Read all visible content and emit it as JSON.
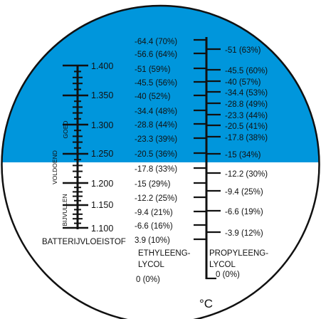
{
  "colors": {
    "blue": "#0096dc",
    "white": "#ffffff",
    "ink": "#111111"
  },
  "battery": {
    "ticks": [
      "1.400",
      "1.350",
      "1.300",
      "1.250",
      "1.200",
      "1.150",
      "1.100"
    ],
    "title": "BATTERIJVLOEISTOF",
    "zones": [
      "GOED",
      "VOLDOEND",
      "BIJVULLEN"
    ]
  },
  "ethylene": {
    "labels": [
      "-64.4 (70%)",
      "-56.6 (64%)",
      "-51 (59%)",
      "-45.5 (56%)",
      "-40 (52%)",
      "-34.4 (48%)",
      "-28.8 (44%)",
      "-23.3 (39%)",
      "-20.5 (36%)",
      "-17.8 (33%)",
      "-15 (29%)",
      "-12.2 (25%)",
      "-9.4 (21%)",
      "-6.6 (16%)",
      "3.9 (10%)"
    ],
    "name_line1": "ETHYLEENG-",
    "name_line2": "LYCOL",
    "zero": "0 (0%)"
  },
  "propylene": {
    "labels": [
      "-51 (63%)",
      "-45.5 (60%)",
      "-40 (57%)",
      "-34.4 (53%)",
      "-28.8 (49%)",
      "-23.3 (44%)",
      "-20.5 (41%)",
      "-17.8 (38%)",
      "-15 (34%)",
      "-12.2 (30%)",
      "-9.4 (25%)",
      "-6.6 (19%)",
      "-3.9 (12%)"
    ],
    "name_line1": "PROPYLEENG-",
    "name_line2": "LYCOL",
    "zero": "0 (0%)"
  },
  "unit": "°C"
}
